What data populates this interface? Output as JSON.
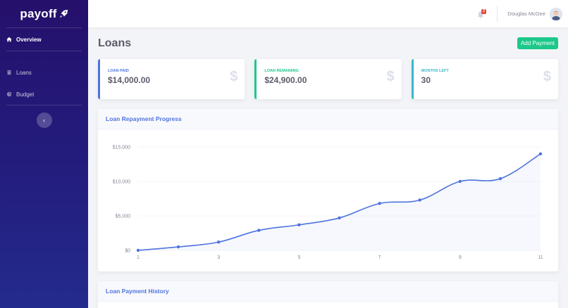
{
  "sidebar": {
    "brand": "payoff",
    "items": [
      {
        "label": "Overview",
        "icon": "home-icon",
        "active": true
      },
      {
        "label": "Loans",
        "icon": "book-icon",
        "active": false
      },
      {
        "label": "Budget",
        "icon": "pie-chart-icon",
        "active": false
      }
    ],
    "collapse_icon": "‹"
  },
  "topbar": {
    "notification_count": "2",
    "user_name": "Douglas McGee"
  },
  "page": {
    "title": "Loans",
    "add_button": "Add Payment"
  },
  "stats": [
    {
      "label": "Loan Paid",
      "value": "$14,000.00",
      "color": "#4e73df",
      "icon": "$"
    },
    {
      "label": "Loan Remaining",
      "value": "$24,900.00",
      "color": "#1cc88a",
      "icon": "$"
    },
    {
      "label": "Months Left",
      "value": "30",
      "color": "#36b9cc",
      "icon": "$"
    }
  ],
  "cards": {
    "progress_title": "Loan Repayment Progress",
    "history_title": "Loan Payment History"
  },
  "colors": {
    "primary": "#4e73df",
    "success": "#1cc88a",
    "info": "#36b9cc"
  },
  "chart_data": {
    "type": "line",
    "title": "Loan Repayment Progress",
    "xlabel": "",
    "ylabel": "",
    "x": [
      1,
      2,
      3,
      4,
      5,
      6,
      7,
      8,
      9,
      10,
      11
    ],
    "x_tick_labels": [
      "1",
      "3",
      "5",
      "7",
      "9",
      "11"
    ],
    "values": [
      0,
      500,
      1200,
      2900,
      3700,
      4700,
      6800,
      7300,
      10000,
      10400,
      14000
    ],
    "y_tick_labels": [
      "$0",
      "$5,000",
      "$10,000",
      "$15,000"
    ],
    "ylim": [
      0,
      15000
    ],
    "grid": true,
    "fill": true,
    "line_color": "#4e73df"
  }
}
